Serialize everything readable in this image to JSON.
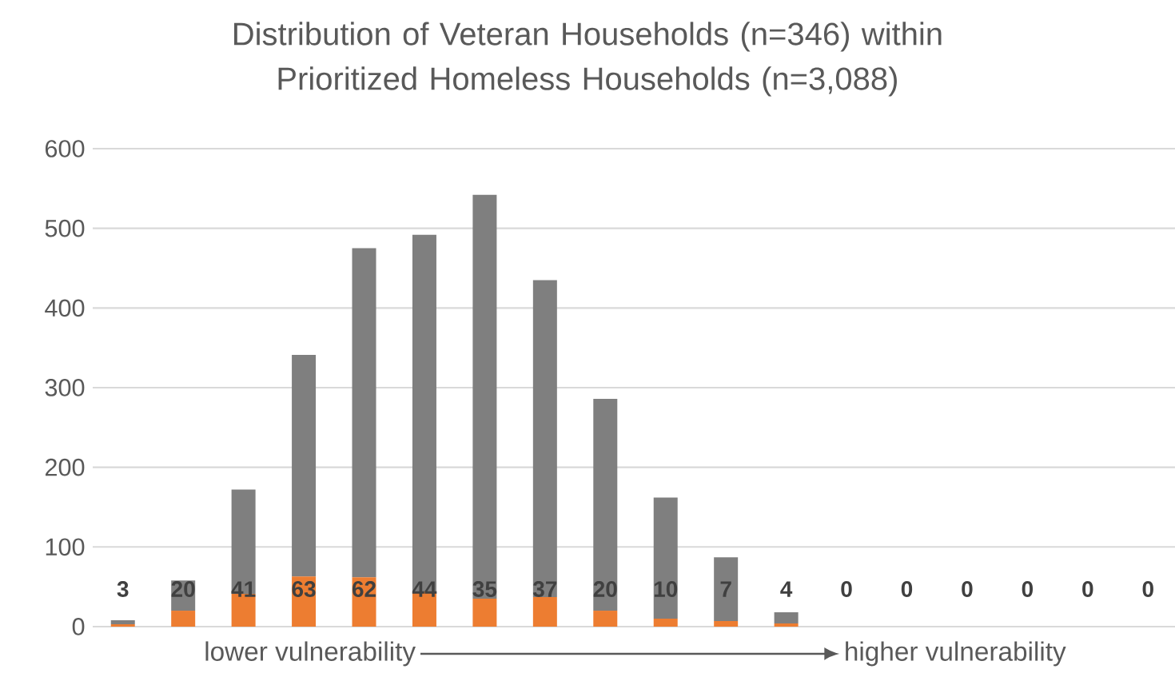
{
  "chart_data": {
    "type": "bar",
    "stacked": true,
    "title": "Distribution of Veteran Households (n=346) within Prioritized Homeless Households (n=3,088)",
    "categories": [
      null,
      null,
      null,
      null,
      null,
      null,
      null,
      null,
      null,
      null,
      null,
      null,
      null,
      null,
      null,
      null,
      null,
      null
    ],
    "series": [
      {
        "color": "#ed7d31",
        "values": [
          3,
          20,
          41,
          63,
          62,
          44,
          35,
          37,
          20,
          10,
          7,
          4,
          0,
          0,
          0,
          0,
          0,
          0
        ],
        "value_labels": [
          "3",
          "20",
          "41",
          "63",
          "62",
          "44",
          "35",
          "37",
          "20",
          "10",
          "7",
          "4",
          "0",
          "0",
          "0",
          "0",
          "0",
          "0"
        ]
      },
      {
        "color": "#7f7f7f",
        "values": [
          5,
          38,
          131,
          278,
          413,
          448,
          507,
          398,
          266,
          152,
          80,
          14,
          0,
          0,
          0,
          0,
          0,
          0
        ]
      }
    ],
    "ylim": [
      0,
      600
    ],
    "yticks": [
      0,
      100,
      200,
      300,
      400,
      500,
      600
    ],
    "grid": "y",
    "annotations": [
      "lower vulnerability",
      "higher vulnerability"
    ]
  }
}
